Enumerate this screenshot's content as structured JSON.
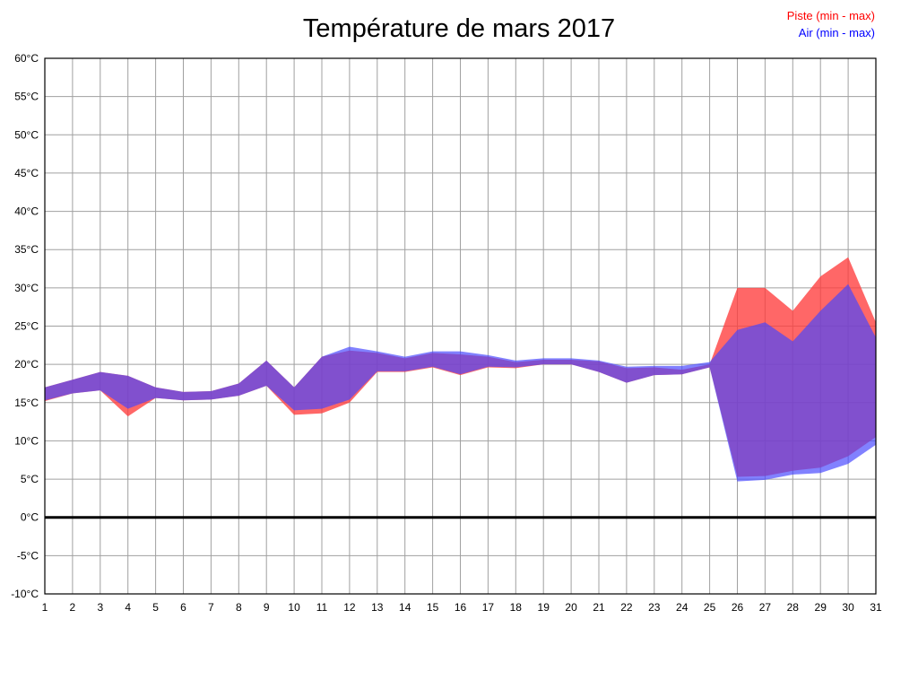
{
  "title": "Température de mars 2017",
  "legend": {
    "piste_label": "Piste (min - max)",
    "air_label": "Air (min - max)",
    "piste_color": "#ff0000",
    "air_color": "#0000ff"
  },
  "chart_data": {
    "type": "area",
    "title": "Température de mars 2017",
    "xlabel": "",
    "ylabel": "",
    "y_unit": "°C",
    "ylim": [
      -10,
      60
    ],
    "ytick_step": 5,
    "grid": true,
    "grid_color": "#a0a0a0",
    "zero_line": true,
    "legend_position": "top-right",
    "days": [
      1,
      2,
      3,
      4,
      5,
      6,
      7,
      8,
      9,
      10,
      11,
      12,
      13,
      14,
      15,
      16,
      17,
      18,
      19,
      20,
      21,
      22,
      23,
      24,
      25,
      26,
      27,
      28,
      29,
      30,
      31
    ],
    "series": [
      {
        "name": "Piste (min - max)",
        "color": "#ff0000",
        "fill": "rgba(255,60,60,0.78)",
        "min": [
          15.2,
          16.2,
          16.6,
          13.2,
          15.6,
          15.3,
          15.4,
          15.9,
          17.2,
          13.4,
          13.6,
          15.0,
          19.0,
          19.0,
          19.6,
          18.6,
          19.6,
          19.5,
          20.0,
          20.0,
          19.0,
          17.6,
          18.6,
          18.7,
          19.6,
          5.3,
          5.4,
          6.1,
          6.5,
          8.0,
          10.5
        ],
        "max": [
          17.0,
          18.0,
          19.0,
          18.5,
          17.0,
          16.4,
          16.5,
          17.5,
          20.5,
          17.0,
          21.0,
          21.8,
          21.5,
          20.8,
          21.5,
          21.3,
          21.0,
          20.3,
          20.6,
          20.6,
          20.4,
          19.5,
          19.6,
          19.3,
          20.0,
          30.0,
          30.0,
          27.0,
          31.5,
          34.0,
          25.5
        ]
      },
      {
        "name": "Air (min - max)",
        "color": "#0000ff",
        "fill": "rgba(70,70,255,0.68)",
        "min": [
          15.3,
          16.2,
          16.6,
          14.2,
          15.6,
          15.3,
          15.4,
          15.9,
          17.2,
          14.0,
          14.2,
          15.4,
          19.1,
          19.1,
          19.7,
          18.7,
          19.7,
          19.6,
          20.0,
          20.0,
          19.0,
          17.6,
          18.6,
          18.7,
          19.6,
          4.7,
          4.9,
          5.6,
          5.8,
          7.0,
          9.5
        ],
        "max": [
          17.0,
          18.0,
          19.0,
          18.5,
          17.0,
          16.4,
          16.5,
          17.5,
          20.5,
          17.0,
          21.0,
          22.3,
          21.7,
          21.0,
          21.7,
          21.7,
          21.2,
          20.5,
          20.8,
          20.8,
          20.5,
          19.7,
          19.8,
          19.8,
          20.3,
          24.5,
          25.5,
          23.0,
          27.0,
          30.5,
          23.5
        ]
      }
    ]
  }
}
